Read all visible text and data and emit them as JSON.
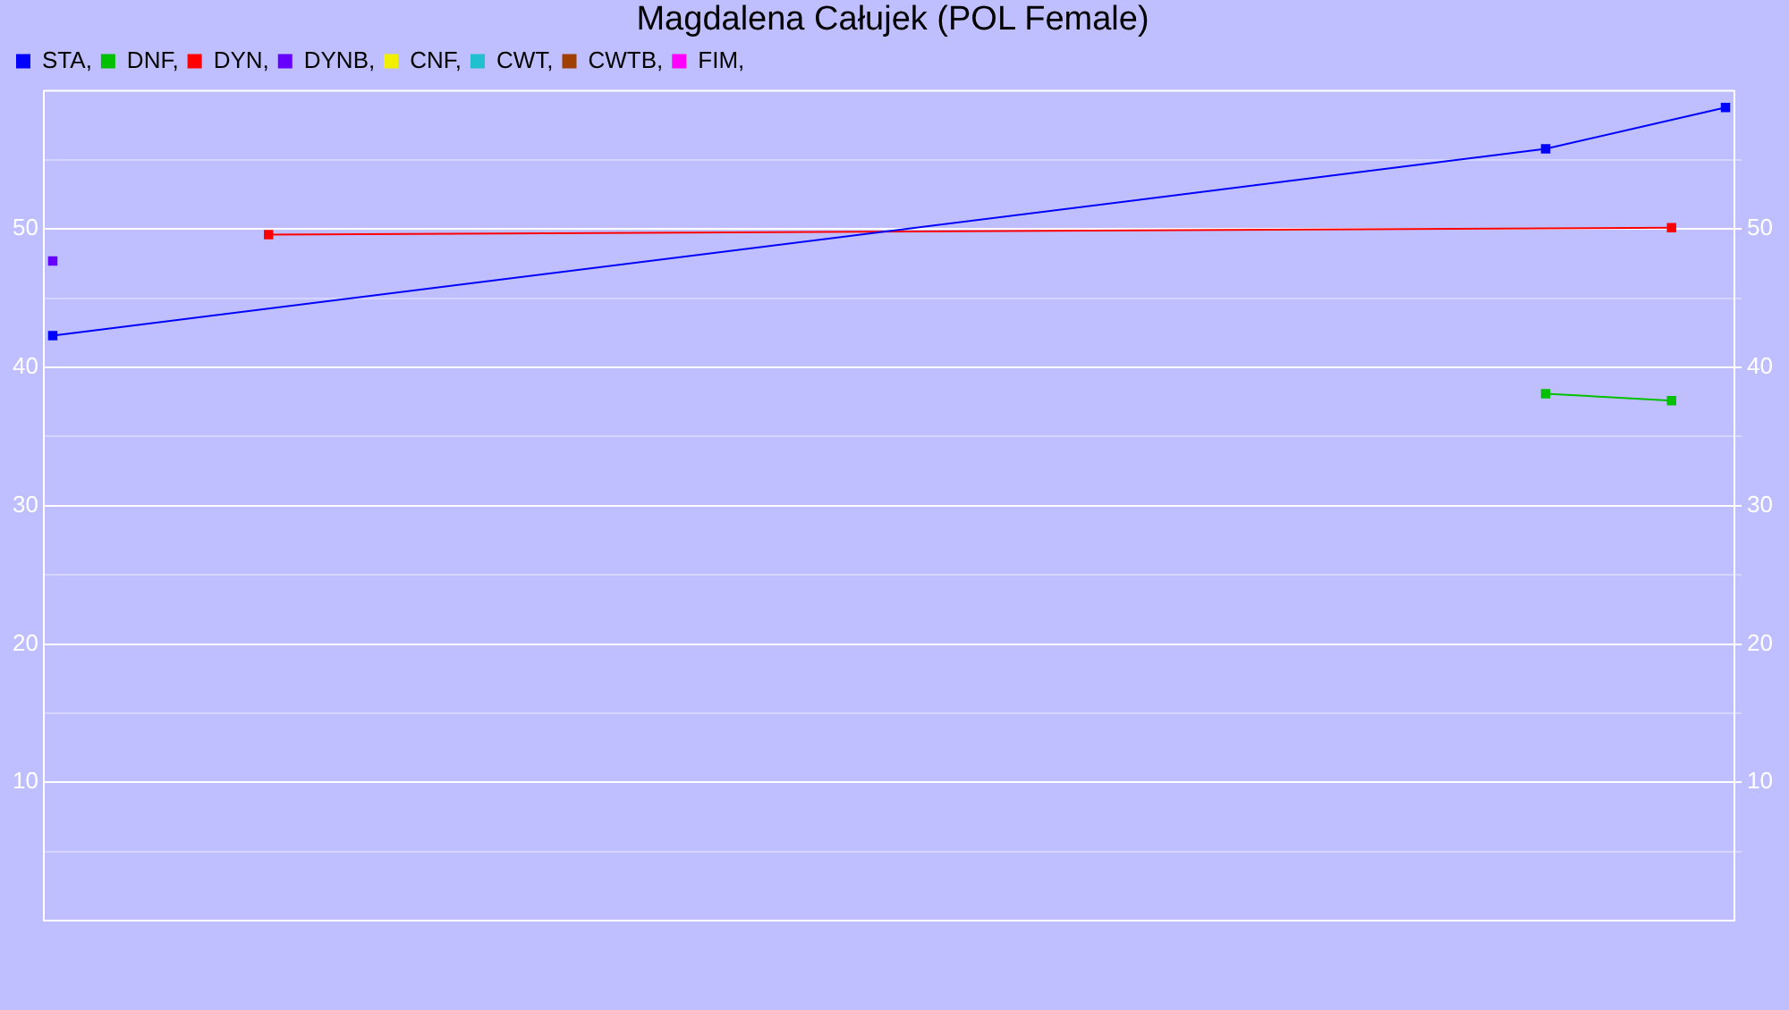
{
  "chart_data": {
    "type": "line",
    "title": "Magdalena Całujek (POL Female)",
    "categories": [
      null,
      null,
      null,
      null,
      null,
      null,
      null,
      null,
      null,
      null,
      null,
      null,
      null,
      null,
      null,
      null,
      null,
      null,
      null,
      null,
      null,
      null,
      null,
      null,
      null,
      null,
      null,
      null,
      null,
      null,
      null,
      null,
      null,
      null,
      null,
      null,
      null,
      null,
      null,
      null,
      null,
      null,
      null,
      null,
      null,
      null,
      null,
      null,
      null,
      null,
      null,
      null,
      null,
      null,
      null,
      null,
      null,
      null,
      null,
      null,
      null,
      null,
      null,
      null,
      null,
      null,
      null,
      null,
      null,
      null,
      null,
      null,
      null,
      null,
      null,
      null,
      null,
      null,
      null,
      null,
      null,
      null,
      null,
      null,
      null,
      null,
      null,
      null,
      null,
      null,
      null,
      null,
      null,
      null
    ],
    "series": [
      {
        "name": "STA,",
        "color": "#0000ff",
        "values": [
          42.3,
          null,
          null,
          null,
          null,
          null,
          null,
          null,
          null,
          null,
          null,
          null,
          null,
          null,
          null,
          null,
          null,
          null,
          null,
          null,
          null,
          null,
          null,
          null,
          null,
          null,
          null,
          null,
          null,
          null,
          null,
          null,
          null,
          null,
          null,
          null,
          null,
          null,
          null,
          null,
          null,
          null,
          null,
          null,
          null,
          null,
          null,
          null,
          null,
          null,
          null,
          null,
          null,
          null,
          null,
          null,
          null,
          null,
          null,
          null,
          null,
          null,
          null,
          null,
          null,
          null,
          null,
          null,
          null,
          null,
          null,
          null,
          null,
          null,
          null,
          null,
          null,
          null,
          null,
          null,
          null,
          null,
          null,
          55.8,
          null,
          null,
          null,
          null,
          null,
          null,
          null,
          null,
          null,
          58.8
        ]
      },
      {
        "name": "DNF,",
        "color": "#00c000",
        "values": [
          null,
          null,
          null,
          null,
          null,
          null,
          null,
          null,
          null,
          null,
          null,
          null,
          null,
          null,
          null,
          null,
          null,
          null,
          null,
          null,
          null,
          null,
          null,
          null,
          null,
          null,
          null,
          null,
          null,
          null,
          null,
          null,
          null,
          null,
          null,
          null,
          null,
          null,
          null,
          null,
          null,
          null,
          null,
          null,
          null,
          null,
          null,
          null,
          null,
          null,
          null,
          null,
          null,
          null,
          null,
          null,
          null,
          null,
          null,
          null,
          null,
          null,
          null,
          null,
          null,
          null,
          null,
          null,
          null,
          null,
          null,
          null,
          null,
          null,
          null,
          null,
          null,
          null,
          null,
          null,
          null,
          null,
          null,
          38.1,
          null,
          null,
          null,
          null,
          null,
          null,
          37.6,
          null,
          null,
          null
        ]
      },
      {
        "name": "DYN,",
        "color": "#ff0000",
        "values": [
          null,
          null,
          null,
          null,
          null,
          null,
          null,
          null,
          null,
          null,
          null,
          null,
          49.6,
          null,
          null,
          null,
          null,
          null,
          null,
          null,
          null,
          null,
          null,
          null,
          null,
          null,
          null,
          null,
          null,
          null,
          null,
          null,
          null,
          null,
          null,
          null,
          null,
          null,
          null,
          null,
          null,
          null,
          null,
          null,
          null,
          null,
          null,
          null,
          null,
          null,
          null,
          null,
          null,
          null,
          null,
          null,
          null,
          null,
          null,
          null,
          null,
          null,
          null,
          null,
          null,
          null,
          null,
          null,
          null,
          null,
          null,
          null,
          null,
          null,
          null,
          null,
          null,
          null,
          null,
          null,
          null,
          null,
          null,
          null,
          null,
          null,
          null,
          null,
          null,
          null,
          50.1,
          null,
          null,
          null
        ]
      },
      {
        "name": "DYNB,",
        "color": "#6600ff",
        "values": [
          47.7,
          null,
          null,
          null,
          null,
          null,
          null,
          null,
          null,
          null,
          null,
          null,
          null,
          null,
          null,
          null,
          null,
          null,
          null,
          null,
          null,
          null,
          null,
          null,
          null,
          null,
          null,
          null,
          null,
          null,
          null,
          null,
          null,
          null,
          null,
          null,
          null,
          null,
          null,
          null,
          null,
          null,
          null,
          null,
          null,
          null,
          null,
          null,
          null,
          null,
          null,
          null,
          null,
          null,
          null,
          null,
          null,
          null,
          null,
          null,
          null,
          null,
          null,
          null,
          null,
          null,
          null,
          null,
          null,
          null,
          null,
          null,
          null,
          null,
          null,
          null,
          null,
          null,
          null,
          null,
          null,
          null,
          null,
          null,
          null,
          null,
          null,
          null,
          null,
          null,
          null,
          null,
          null,
          null
        ]
      },
      {
        "name": "CNF,",
        "color": "#f0f000",
        "values": [
          null,
          null,
          null,
          null,
          null,
          null,
          null,
          null,
          null,
          null,
          null,
          null,
          null,
          null,
          null,
          null,
          null,
          null,
          null,
          null,
          null,
          null,
          null,
          null,
          null,
          null,
          null,
          null,
          null,
          null,
          null,
          null,
          null,
          null,
          null,
          null,
          null,
          null,
          null,
          null,
          null,
          null,
          null,
          null,
          null,
          null,
          null,
          null,
          null,
          null,
          null,
          null,
          null,
          null,
          null,
          null,
          null,
          null,
          null,
          null,
          null,
          null,
          null,
          null,
          null,
          null,
          null,
          null,
          null,
          null,
          null,
          null,
          null,
          null,
          null,
          null,
          null,
          null,
          null,
          null,
          null,
          null,
          null,
          null,
          null,
          null,
          null,
          null,
          null,
          null,
          null,
          null,
          null,
          null
        ]
      },
      {
        "name": "CWT,",
        "color": "#20c0d0",
        "values": [
          null,
          null,
          null,
          null,
          null,
          null,
          null,
          null,
          null,
          null,
          null,
          null,
          null,
          null,
          null,
          null,
          null,
          null,
          null,
          null,
          null,
          null,
          null,
          null,
          null,
          null,
          null,
          null,
          null,
          null,
          null,
          null,
          null,
          null,
          null,
          null,
          null,
          null,
          null,
          null,
          null,
          null,
          null,
          null,
          null,
          null,
          null,
          null,
          null,
          null,
          null,
          null,
          null,
          null,
          null,
          null,
          null,
          null,
          null,
          null,
          null,
          null,
          null,
          null,
          null,
          null,
          null,
          null,
          null,
          null,
          null,
          null,
          null,
          null,
          null,
          null,
          null,
          null,
          null,
          null,
          null,
          null,
          null,
          null,
          null,
          null,
          null,
          null,
          null,
          null,
          null,
          null,
          null,
          null
        ]
      },
      {
        "name": "CWTB,",
        "color": "#a04000",
        "values": [
          null,
          null,
          null,
          null,
          null,
          null,
          null,
          null,
          null,
          null,
          null,
          null,
          null,
          null,
          null,
          null,
          null,
          null,
          null,
          null,
          null,
          null,
          null,
          null,
          null,
          null,
          null,
          null,
          null,
          null,
          null,
          null,
          null,
          null,
          null,
          null,
          null,
          null,
          null,
          null,
          null,
          null,
          null,
          null,
          null,
          null,
          null,
          null,
          null,
          null,
          null,
          null,
          null,
          null,
          null,
          null,
          null,
          null,
          null,
          null,
          null,
          null,
          null,
          null,
          null,
          null,
          null,
          null,
          null,
          null,
          null,
          null,
          null,
          null,
          null,
          null,
          null,
          null,
          null,
          null,
          null,
          null,
          null,
          null,
          null,
          null,
          null,
          null,
          null,
          null,
          null,
          null,
          null,
          null
        ]
      },
      {
        "name": "FIM,",
        "color": "#ff00ff",
        "values": [
          null,
          null,
          null,
          null,
          null,
          null,
          null,
          null,
          null,
          null,
          null,
          null,
          null,
          null,
          null,
          null,
          null,
          null,
          null,
          null,
          null,
          null,
          null,
          null,
          null,
          null,
          null,
          null,
          null,
          null,
          null,
          null,
          null,
          null,
          null,
          null,
          null,
          null,
          null,
          null,
          null,
          null,
          null,
          null,
          null,
          null,
          null,
          null,
          null,
          null,
          null,
          null,
          null,
          null,
          null,
          null,
          null,
          null,
          null,
          null,
          null,
          null,
          null,
          null,
          null,
          null,
          null,
          null,
          null,
          null,
          null,
          null,
          null,
          null,
          null,
          null,
          null,
          null,
          null,
          null,
          null,
          null,
          null,
          null,
          null,
          null,
          null,
          null,
          null,
          null,
          null,
          null,
          null,
          null
        ]
      }
    ],
    "ylim": [
      0,
      60
    ],
    "yticks": [
      {
        "value": 5,
        "label": null
      },
      10,
      {
        "value": 15,
        "label": null
      },
      20,
      {
        "value": 25,
        "label": null
      },
      30,
      {
        "value": 35,
        "label": null
      },
      40,
      {
        "value": 45,
        "label": null
      },
      50,
      {
        "value": 55,
        "label": null
      }
    ],
    "y2lim": [
      0,
      60
    ],
    "y2ticks": [
      {
        "value": 5,
        "label": null
      },
      10,
      {
        "value": 15,
        "label": null
      },
      20,
      {
        "value": 25,
        "label": null
      },
      30,
      {
        "value": 35,
        "label": null
      },
      40,
      {
        "value": 45,
        "label": null
      },
      50,
      {
        "value": 55,
        "label": null
      }
    ],
    "grid": "y",
    "legend": "top left",
    "marker": "square",
    "line_style": "solid",
    "tick_labels": "y"
  }
}
